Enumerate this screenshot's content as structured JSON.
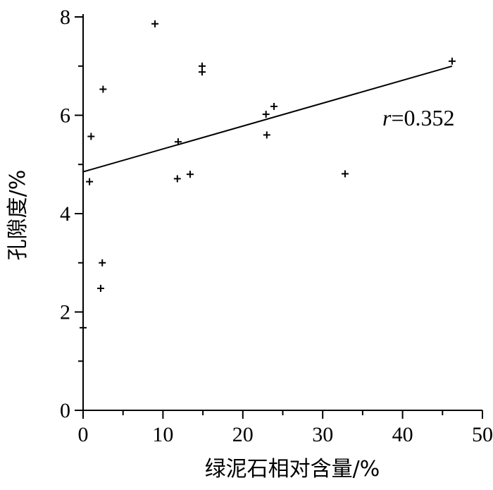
{
  "chart_data": {
    "type": "scatter",
    "title": "",
    "xlabel": "绿泥石相对含量/%",
    "ylabel": "孔隙度/%",
    "xlim": [
      0,
      50
    ],
    "ylim": [
      0,
      8
    ],
    "x_ticks": [
      "0",
      "10",
      "20",
      "30",
      "40",
      "50"
    ],
    "y_ticks": [
      "0",
      "2",
      "4",
      "6",
      "8"
    ],
    "points": [
      {
        "x": 0.0,
        "y": 1.68
      },
      {
        "x": 0.8,
        "y": 4.65
      },
      {
        "x": 1.0,
        "y": 5.57
      },
      {
        "x": 2.2,
        "y": 2.48
      },
      {
        "x": 2.4,
        "y": 3.0
      },
      {
        "x": 2.5,
        "y": 6.53
      },
      {
        "x": 9.0,
        "y": 7.86
      },
      {
        "x": 11.8,
        "y": 4.71
      },
      {
        "x": 11.9,
        "y": 5.46
      },
      {
        "x": 13.4,
        "y": 4.8
      },
      {
        "x": 14.9,
        "y": 6.88
      },
      {
        "x": 14.9,
        "y": 7.0
      },
      {
        "x": 22.9,
        "y": 6.02
      },
      {
        "x": 23.0,
        "y": 5.6
      },
      {
        "x": 23.9,
        "y": 6.18
      },
      {
        "x": 32.8,
        "y": 4.81
      },
      {
        "x": 46.2,
        "y": 7.1
      }
    ],
    "fit_line": {
      "x": [
        0,
        46.2
      ],
      "y": [
        4.85,
        7.0
      ]
    },
    "annotation": {
      "r_symbol": "r",
      "r_value": "=0.352"
    }
  }
}
